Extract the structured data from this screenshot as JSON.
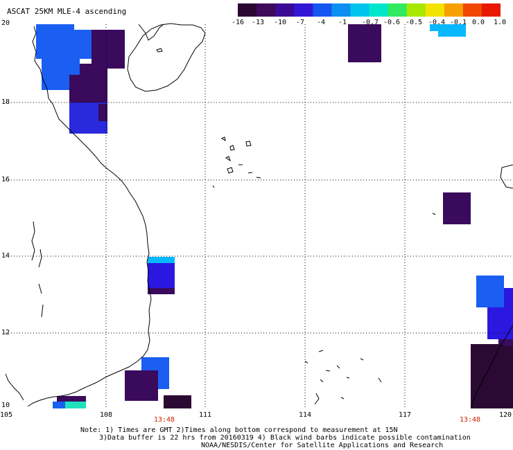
{
  "title": "ASCAT 25KM MLE-4 ascending",
  "colorbar": {
    "labels": [
      "-16",
      "-13",
      "-10",
      "-7",
      "-4",
      "-1",
      "-0.7",
      "-0.6",
      "-0.5",
      "-0.4",
      "-0.1",
      "0.0",
      "1.0"
    ],
    "colors": [
      "#2a0830",
      "#3e0a5a",
      "#3c0b96",
      "#3218d6",
      "#1555f0",
      "#0c8ff0",
      "#00c4ec",
      "#00e6cc",
      "#30ea60",
      "#a8e800",
      "#f2e400",
      "#f8a000",
      "#f04800",
      "#e81800"
    ]
  },
  "axes": {
    "lat_labels": [
      "20",
      "18",
      "16",
      "14",
      "12",
      "10"
    ],
    "lon_labels": [
      "105",
      "108",
      "111",
      "114",
      "117",
      "120"
    ],
    "lat_range": [
      10,
      20
    ],
    "lon_range": [
      105,
      120
    ]
  },
  "times": [
    "13:48",
    "13:48"
  ],
  "notes": {
    "line1": "Note: 1) Times are GMT 2)Times along bottom correspond to measurement at 15N",
    "line2": "3)Data buffer is 22 hrs from 20160319 4) Black wind barbs indicate possible contamination",
    "line3": "NOAA/NESDIS/Center for Satellite Applications and Research"
  },
  "colors": {
    "grid": "#000000",
    "coast": "#000000",
    "time_label": "#cc2200",
    "cell_dark": "#3a0a5c",
    "cell_blue": "#1a5ef2",
    "cell_mid": "#2a2adc",
    "cell_light": "#08b8ff",
    "cell_black": "#2a0a32"
  }
}
